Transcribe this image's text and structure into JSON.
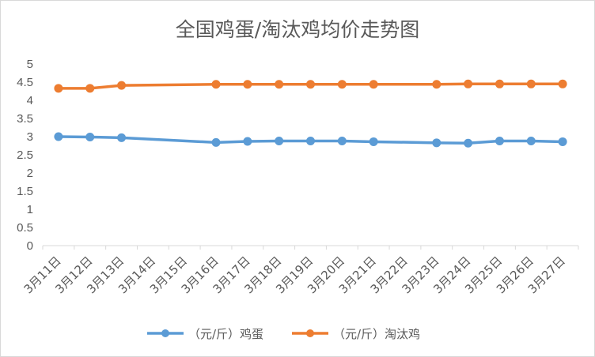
{
  "chart_data": {
    "type": "line",
    "title": "全国鸡蛋/淘汰鸡均价走势图",
    "xlabel": "",
    "ylabel": "",
    "ylim": [
      0,
      5
    ],
    "yticks": [
      "0",
      "0.5",
      "1",
      "1.5",
      "2",
      "2.5",
      "3",
      "3.5",
      "4",
      "4.5",
      "5"
    ],
    "categories": [
      "3月11日",
      "3月12日",
      "3月13日",
      "3月14日",
      "3月15日",
      "3月16日",
      "3月17日",
      "3月18日",
      "3月19日",
      "3月20日",
      "3月21日",
      "3月22日",
      "3月23日",
      "3月24日",
      "3月25日",
      "3月26日",
      "3月27日"
    ],
    "series": [
      {
        "name": "（元/斤）鸡蛋",
        "color": "#5b9bd5",
        "values": [
          3.0,
          2.99,
          2.97,
          null,
          null,
          2.84,
          2.87,
          2.88,
          2.88,
          2.88,
          2.86,
          null,
          2.83,
          2.82,
          2.88,
          2.88,
          2.86
        ]
      },
      {
        "name": "（元/斤）淘汰鸡",
        "color": "#ed7d31",
        "values": [
          4.33,
          4.33,
          4.41,
          null,
          null,
          4.44,
          4.44,
          4.44,
          4.44,
          4.44,
          4.44,
          null,
          4.44,
          4.45,
          4.45,
          4.45,
          4.45
        ]
      }
    ],
    "grid": false,
    "legend": "bottom"
  }
}
